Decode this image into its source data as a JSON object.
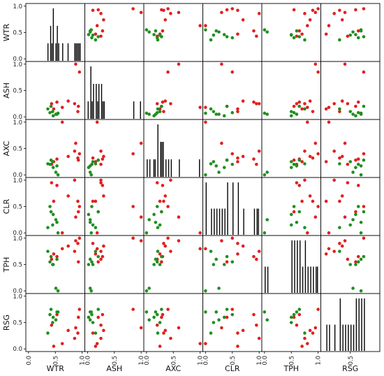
{
  "chart_data": {
    "type": "scatter-matrix",
    "title": "",
    "variables": [
      "WTR",
      "ASH",
      "AXC",
      "CLR",
      "TPH",
      "RSG"
    ],
    "diagonal": "histogram",
    "y_ticks": [
      "0.0",
      "0.5",
      "1.0"
    ],
    "x_ticks": [
      "0.0",
      "0.5",
      "1.0"
    ],
    "x_ticks_last_column": [
      "0.5"
    ],
    "ylim": [
      -0.05,
      1.05
    ],
    "xlim": [
      -0.05,
      1.05
    ],
    "colors": {
      "group_a": "#e02020",
      "group_b": "#1f8f1f"
    },
    "points": {
      "WTR": [
        0.95,
        0.88,
        0.74,
        0.92,
        0.63,
        0.47,
        0.93,
        0.86,
        0.53,
        0.43,
        0.55,
        0.51,
        0.46,
        0.4,
        0.36,
        0.42,
        0.45,
        0.53
      ],
      "ASH": [
        0.85,
        1.0,
        0.3,
        0.1,
        0.18,
        0.15,
        0.2,
        0.25,
        0.28,
        0.25,
        0.07,
        0.05,
        0.02,
        0.08,
        0.15,
        0.2,
        0.1,
        0.05
      ],
      "AXC": [
        0.4,
        0.6,
        0.35,
        0.32,
        1.0,
        0.25,
        0.28,
        0.45,
        0.3,
        0.2,
        0.0,
        0.05,
        0.14,
        0.2,
        0.21,
        0.28,
        0.25,
        0.17
      ],
      "CLR": [
        0.5,
        0.3,
        0.7,
        0.6,
        0.0,
        0.6,
        0.4,
        1.0,
        0.9,
        0.95,
        0.0,
        0.25,
        0.35,
        0.5,
        0.1,
        0.4,
        0.15,
        0.2
      ],
      "TPH": [
        1.0,
        0.95,
        0.85,
        0.9,
        0.8,
        0.7,
        0.55,
        0.75,
        0.65,
        0.6,
        0.0,
        0.05,
        0.5,
        0.55,
        0.75,
        0.65,
        0.5,
        0.6
      ],
      "RSG": [
        0.75,
        0.4,
        0.35,
        0.3,
        0.1,
        0.05,
        0.6,
        0.2,
        0.65,
        0.45,
        0.7,
        0.55,
        0.6,
        0.65,
        0.3,
        0.75,
        0.5,
        0.7
      ]
    },
    "groups": [
      "a",
      "a",
      "a",
      "a",
      "a",
      "a",
      "a",
      "a",
      "a",
      "a",
      "b",
      "b",
      "b",
      "b",
      "b",
      "b",
      "b",
      "b"
    ]
  }
}
